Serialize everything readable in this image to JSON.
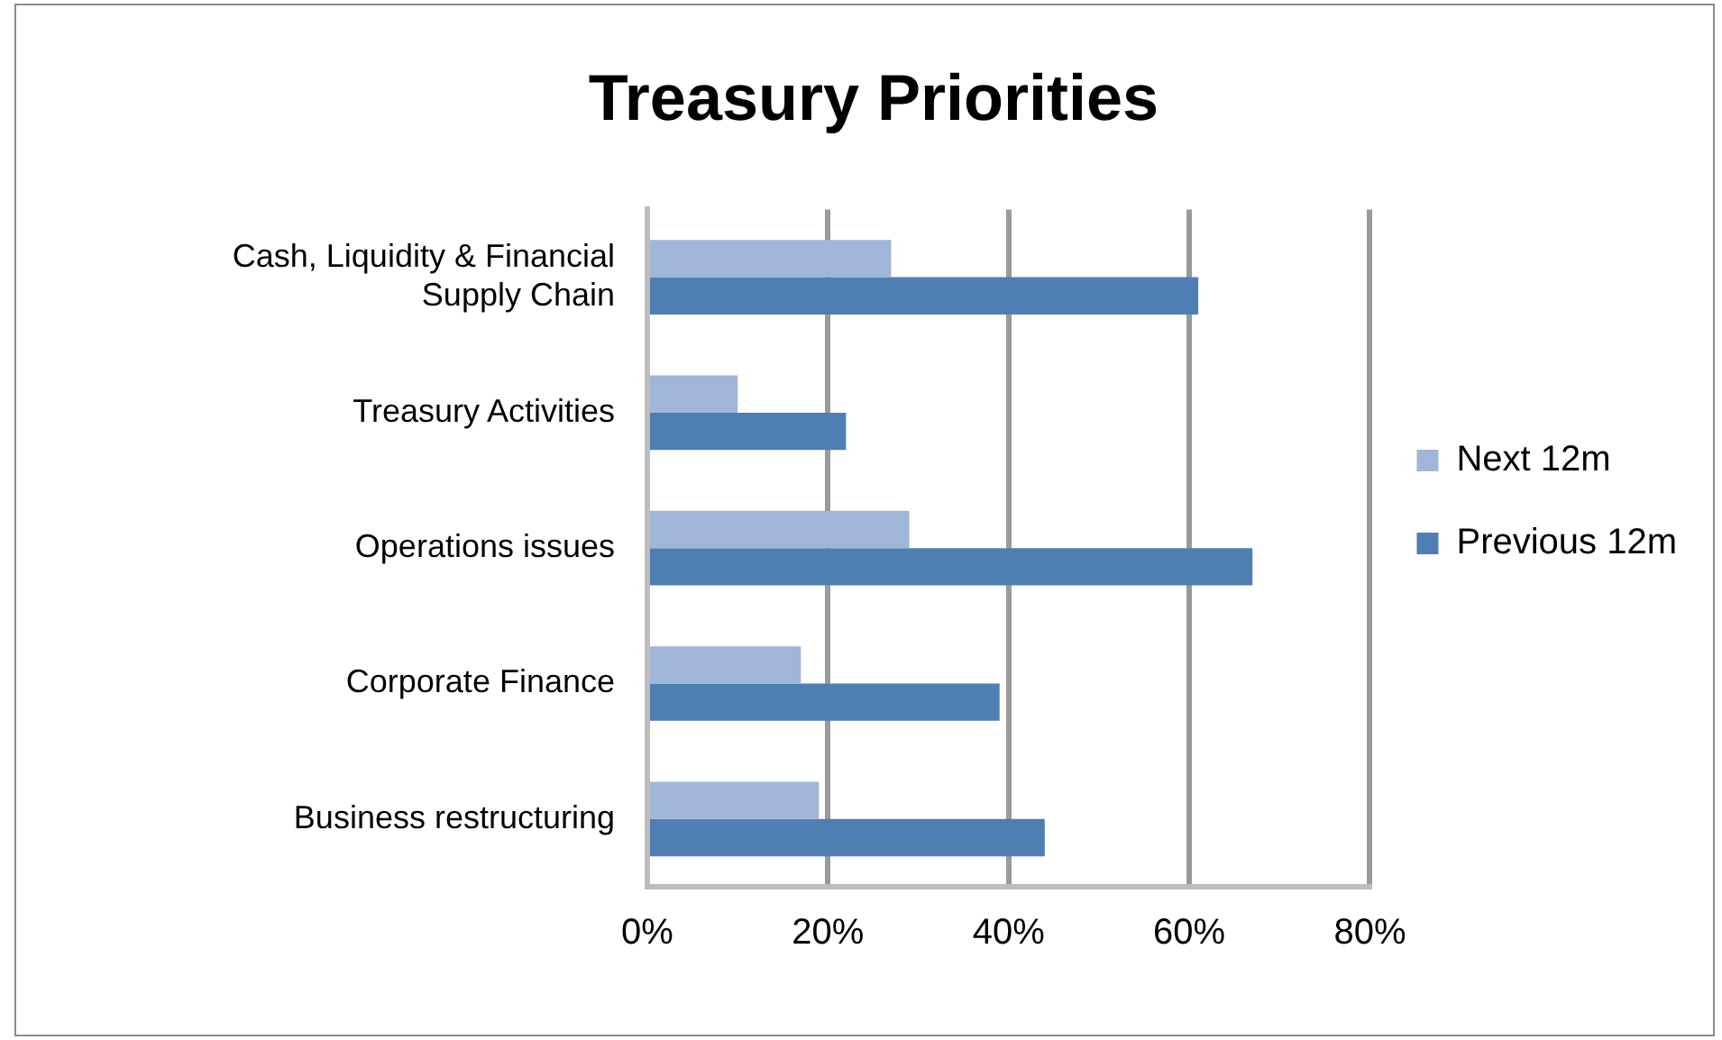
{
  "chart_data": {
    "type": "bar",
    "orientation": "horizontal",
    "title": "Treasury Priorities",
    "categories": [
      "Cash, Liquidity & Financial Supply Chain",
      "Treasury Activities",
      "Operations issues",
      "Corporate Finance",
      "Business restructuring"
    ],
    "series": [
      {
        "name": "Next 12m",
        "color": "#a0b5da",
        "values": [
          27,
          10,
          29,
          17,
          19
        ]
      },
      {
        "name": "Previous 12m",
        "color": "#4f7eb2",
        "values": [
          61,
          22,
          67,
          39,
          44
        ]
      }
    ],
    "xlim": [
      0,
      80
    ],
    "xticks": [
      {
        "value": 0,
        "label": "0%"
      },
      {
        "value": 20,
        "label": "20%"
      },
      {
        "value": 40,
        "label": "40%"
      },
      {
        "value": 60,
        "label": "60%"
      },
      {
        "value": 80,
        "label": "80%"
      }
    ],
    "grid": "x",
    "legend": "right"
  }
}
